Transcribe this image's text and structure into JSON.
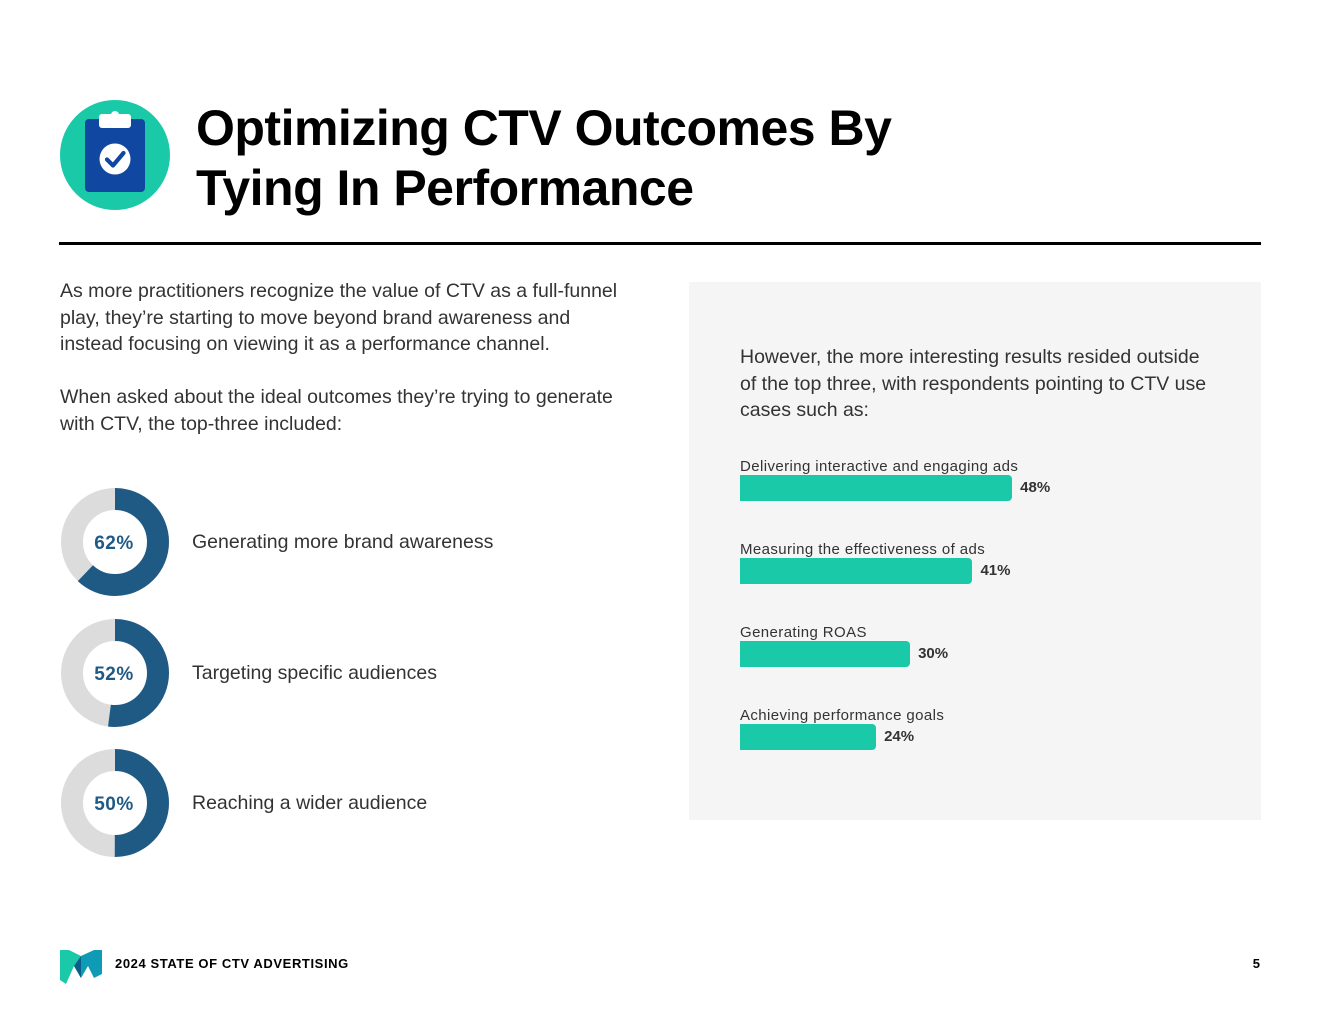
{
  "header": {
    "icon": "clipboard-check-icon",
    "title_line1": "Optimizing CTV Outcomes By",
    "title_line2": "Tying In Performance"
  },
  "intro": {
    "paragraph1": "As more practitioners recognize the value of CTV as a full-funnel play, they’re starting to move beyond brand awareness and instead focusing on viewing it as a performance channel.",
    "paragraph2": "When asked about the ideal outcomes they’re trying to generate with CTV, the top-three included:"
  },
  "top_three": [
    {
      "percent_label": "62%",
      "value": 62,
      "label": "Generating more brand awareness"
    },
    {
      "percent_label": "52%",
      "value": 52,
      "label": "Targeting specific audiences"
    },
    {
      "percent_label": "50%",
      "value": 50,
      "label": "Reaching a wider audience"
    }
  ],
  "panel": {
    "intro": "However, the more interesting results resided outside of the top three, with respondents pointing to CTV use cases such as:"
  },
  "chart_data": {
    "type": "bar",
    "orientation": "horizontal",
    "title": "",
    "categories": [
      "Delivering interactive and engaging ads",
      "Measuring the effectiveness of ads",
      "Generating ROAS",
      "Achieving performance goals"
    ],
    "values": [
      48,
      41,
      30,
      24
    ],
    "value_labels": [
      "48%",
      "41%",
      "30%",
      "24%"
    ],
    "xlim": [
      0,
      100
    ],
    "xlabel": "",
    "ylabel": ""
  },
  "footer": {
    "logo": "m-logo-icon",
    "report_title": "2024 STATE OF CTV ADVERTISING",
    "page_number": "5"
  },
  "colors": {
    "donut_fill": "#1f5a85",
    "donut_track": "#dcdcdc",
    "bar_fill": "#1ac9a8",
    "icon_circle": "#1ac9a8",
    "clipboard": "#0f47a1",
    "panel_bg": "#f5f5f5"
  }
}
